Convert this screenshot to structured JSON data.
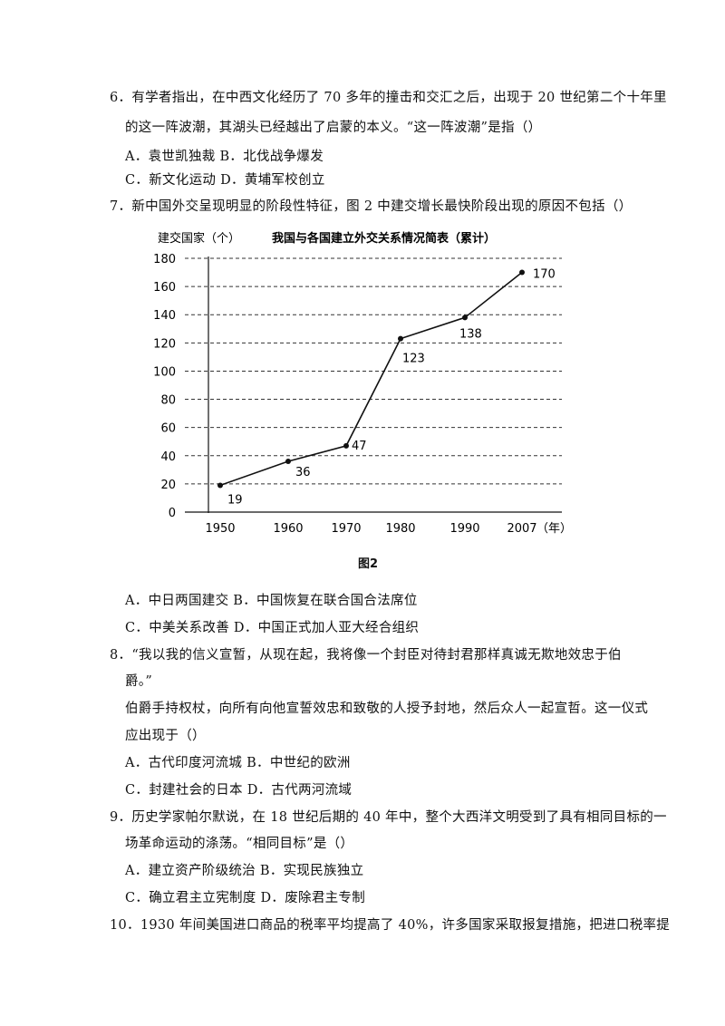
{
  "q6": {
    "line1": "6．有学者指出，在中西文化经历了 70 多年的撞击和交汇之后，出现于 20 世纪第二个十年里",
    "line2": "的这一阵波潮，其湖头已经越出了启蒙的本义。“这一阵波潮”是指（）",
    "optAB": "A．袁世凯独裁 B．北伐战争爆发",
    "optCD": "C．新文化运动 D．黄埔军校创立"
  },
  "q7": {
    "line1": "7．新中国外交呈现明显的阶段性特征，图 2 中建交增长最快阶段出现的原因不包括（）",
    "optAB": "A．中日两国建交 B．中国恢复在联合国合法席位",
    "optCD": "C．中美关系改善 D．中国正式加人亚大经合组织"
  },
  "q8": {
    "line1": "8．“我以我的信义宣暂，从现在起，我将像一个封臣对待封君那样真诚无欺地效忠于伯",
    "line2": "爵。”",
    "line3": "伯爵手持权杖，向所有向他宣誓效忠和致敬的人授予封地，然后众人一起宣哲。这一仪式",
    "line4": "应出现于（）",
    "optAB": "A．古代印度河流城 B．中世纪的欧洲",
    "optCD": "C．封建社会的日本 D．古代两河流域"
  },
  "q9": {
    "line1": "9．历史学家帕尔默说，在 18 世纪后期的 40 年中，整个大西洋文明受到了具有相同目标的一",
    "line2": "场革命运动的涤荡。“相同目标”是（）",
    "optAB": "A．建立资产阶级统治 B．实现民族独立",
    "optCD": "C．确立君主立宪制度 D．废除君主专制"
  },
  "q10": {
    "line1": "10．1930 年间美国进口商品的税率平均提高了 40%，许多国家采取报复措施，把进口税率提"
  },
  "figure_caption": "图2",
  "chart_data": {
    "type": "line",
    "title": "我国与各国建立外交关系情况简表（累计）",
    "ylabel": "建交国家（个）",
    "xlabel": "（年）",
    "x": [
      "1950",
      "1960",
      "1970",
      "1980",
      "1990",
      "2007"
    ],
    "values": [
      19,
      36,
      47,
      123,
      138,
      170
    ],
    "data_labels": [
      "19",
      "36",
      "47",
      "123",
      "138",
      "170"
    ],
    "y_ticks": [
      "0",
      "20",
      "40",
      "60",
      "80",
      "100",
      "120",
      "140",
      "160",
      "180"
    ],
    "ylim": [
      0,
      180
    ],
    "grid": "horizontal dashed",
    "colors": {
      "line": "#111111",
      "grid": "#333333"
    }
  }
}
